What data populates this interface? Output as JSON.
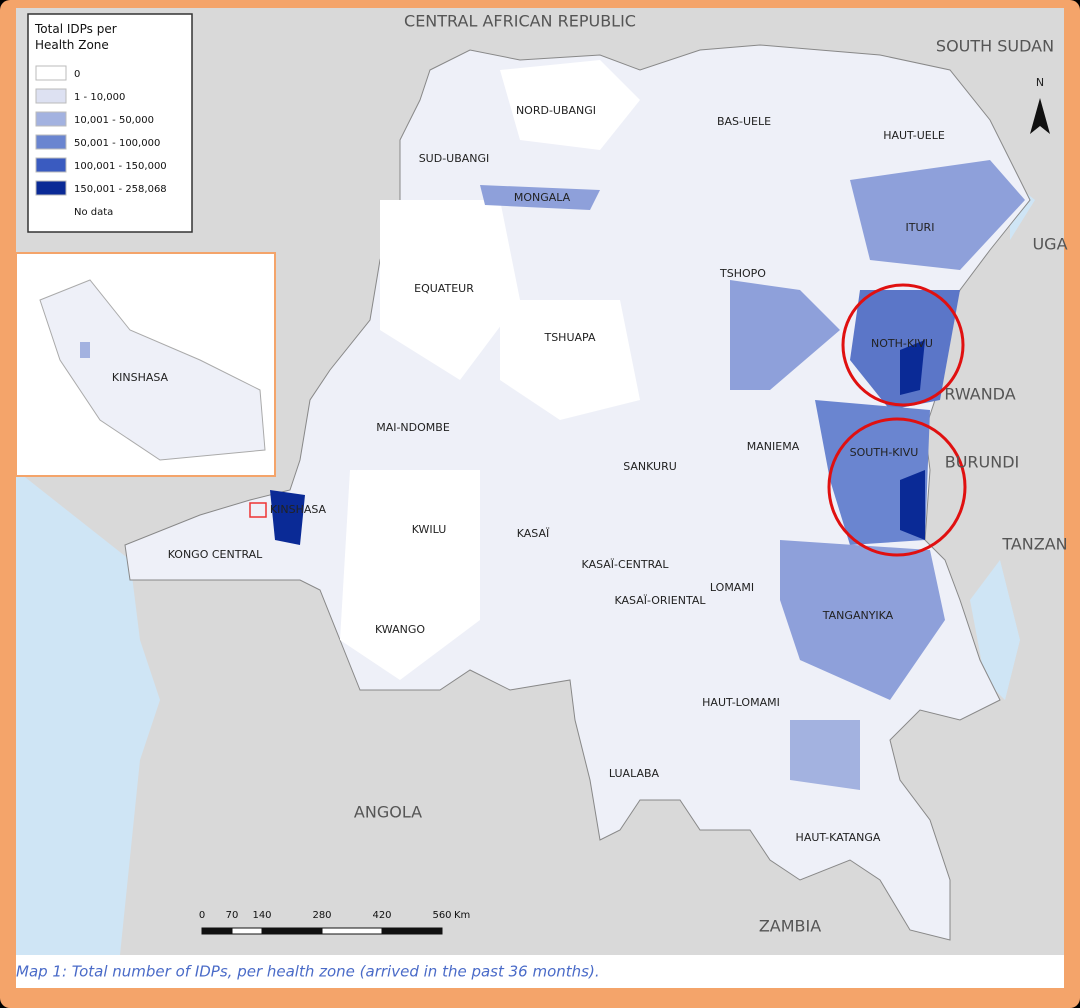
{
  "legend": {
    "title_lines": [
      "Total IDPs per",
      "Health Zone"
    ],
    "items": [
      {
        "label": "0",
        "color": "#ffffff"
      },
      {
        "label": "1 - 10,000",
        "color": "#dde1f2"
      },
      {
        "label": "10,001 - 50,000",
        "color": "#a3b2e0"
      },
      {
        "label": "50,001 - 100,000",
        "color": "#6a85d0"
      },
      {
        "label": "100,001 - 150,000",
        "color": "#3a5bc0"
      },
      {
        "label": "150,001 - 258,068",
        "color": "#0a2a96"
      },
      {
        "label": "No data",
        "color": "#e4e4e4"
      }
    ]
  },
  "countries": [
    "CENTRAL AFRICAN REPUBLIC",
    "SOUTH SUDAN",
    "UGA",
    "RWANDA",
    "BURUNDI",
    "TANZAN",
    "ANGOLA",
    "ZAMBIA"
  ],
  "provinces": [
    "NORD-UBANGI",
    "BAS-UELE",
    "HAUT-UELE",
    "SUD-UBANGI",
    "MONGALA",
    "ITURI",
    "TSHOPO",
    "EQUATEUR",
    "TSHUAPA",
    "NOTH-KIVU",
    "MAI-NDOMBE",
    "SANKURU",
    "MANIEMA",
    "SOUTH-KIVU",
    "KINSHASA",
    "KONGO CENTRAL",
    "KWILU",
    "KASAÏ",
    "KASAÏ-CENTRAL",
    "KASAÏ-ORIENTAL",
    "LOMAMI",
    "KWANGO",
    "TANGANYIKA",
    "HAUT-LOMAMI",
    "LUALABA",
    "HAUT-KATANGA"
  ],
  "inset": {
    "label": "KINSHASA"
  },
  "north": "N",
  "scale_bar": {
    "ticks": [
      0,
      70,
      140,
      280,
      420,
      560
    ],
    "unit": "Km"
  },
  "caption": "Map 1: Total number of IDPs, per health zone (arrived in the past 36 months)."
}
